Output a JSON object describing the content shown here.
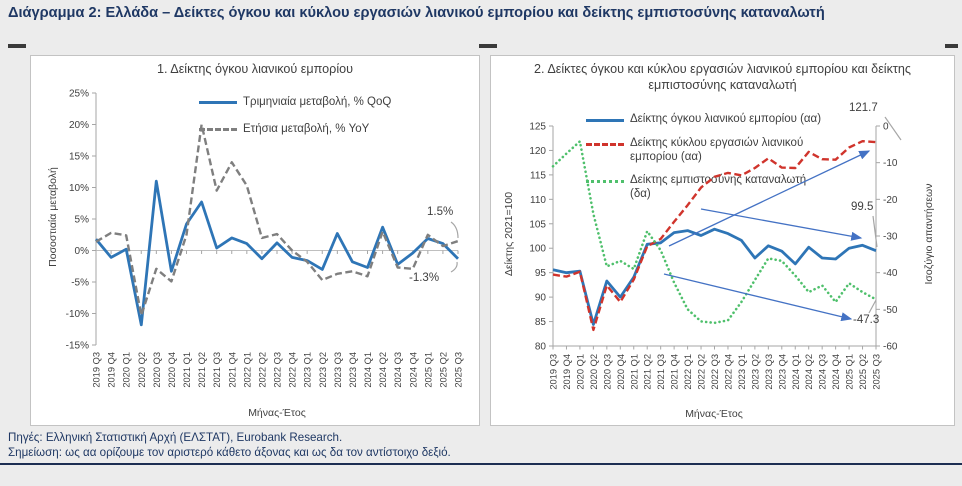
{
  "header": {
    "title": "Διάγραμμα 2: Ελλάδα – Δείκτες όγκου και κύκλου εργασιών λιανικού εμπορίου και δείκτης εμπιστοσύνης καταναλωτή"
  },
  "footer": {
    "sources": "Πηγές: Ελληνική Στατιστική Αρχή (ΕΛΣΤΑΤ), Eurobank Research.",
    "note": "Σημείωση: ως αα ορίζουμε τον αριστερό κάθετο άξονας και ως δα τον αντίστοιχο δεξιό."
  },
  "colors": {
    "title_navy": "#1f3864",
    "rule_navy": "#1c2e52",
    "page_background": "#ececec",
    "axis_gray": "#a6a6a6",
    "annotation_arrow_blue": "#4472c4"
  },
  "chart_data": [
    {
      "type": "line",
      "title": "1. Δείκτης όγκου λιανικού εμπορίου",
      "xlabel": "Μήνας-Έτος",
      "ylabel": "Ποσοστιαία μεταβολή",
      "legend_position": "top-right-inside",
      "grid": false,
      "ylim_left": [
        -15,
        25
      ],
      "yticks_left": [
        "25%",
        "20%",
        "15%",
        "10%",
        "5%",
        "0%",
        "-5%",
        "-10%",
        "-15%"
      ],
      "categories": [
        "2019 Q3",
        "2019 Q4",
        "2020 Q1",
        "2020 Q2",
        "2020 Q3",
        "2020 Q4",
        "2021 Q1",
        "2021 Q2",
        "2021 Q3",
        "2021 Q4",
        "2022 Q1",
        "2022 Q2",
        "2022 Q3",
        "2022 Q4",
        "2023 Q1",
        "2023 Q2",
        "2023 Q3",
        "2023 Q4",
        "2024 Q1",
        "2024 Q2",
        "2024 Q3",
        "2024 Q4",
        "2025 Q1",
        "2025 Q2",
        "2025 Q3"
      ],
      "series": [
        {
          "name": "Τριμηνιαία μεταβολή, % QoQ",
          "color": "#2e75b6",
          "style": "solid",
          "axis": "left",
          "values": [
            1.8,
            -1.1,
            0.2,
            -11.8,
            11.0,
            -3.3,
            4.2,
            7.7,
            0.4,
            2.0,
            1.1,
            -1.3,
            1.2,
            -1.1,
            -1.6,
            -3.0,
            2.7,
            -1.8,
            -2.7,
            3.7,
            -2.2,
            -0.4,
            1.9,
            1.1,
            -1.3
          ]
        },
        {
          "name": "Ετήσια μεταβολή, % YoY",
          "color": "#7f7f7f",
          "style": "dashed",
          "axis": "left",
          "values": [
            1.4,
            2.8,
            2.4,
            -10.3,
            -2.9,
            -4.9,
            2.5,
            20.0,
            9.5,
            14.0,
            10.3,
            2.0,
            2.6,
            0.0,
            -1.8,
            -4.7,
            -3.7,
            -3.3,
            -4.1,
            3.0,
            -2.7,
            -2.9,
            2.5,
            0.7,
            1.5
          ]
        }
      ],
      "annotations": [
        {
          "text": "1.5%",
          "refers_to": "Ετήσια μεταβολή 2025 Q3"
        },
        {
          "text": "-1.3%",
          "refers_to": "Τριμηνιαία μεταβολή 2025 Q3"
        }
      ]
    },
    {
      "type": "line",
      "title": "2. Δείκτες όγκου και κύκλου εργασιών λιανικού εμπορίου και δείκτης εμπιστοσύνης καταναλωτή",
      "xlabel": "Μήνας-Έτος",
      "ylabel_left": "Δείκτης 2021=100",
      "ylabel_right": "Ισοζύγιο απαντήσεων",
      "legend_position": "top-left-inside",
      "grid": false,
      "ylim_left": [
        80,
        125
      ],
      "yticks_left": [
        "125",
        "120",
        "115",
        "110",
        "105",
        "100",
        "95",
        "90",
        "85",
        "80"
      ],
      "ylim_right": [
        -60,
        0
      ],
      "yticks_right": [
        "0",
        "-10",
        "-20",
        "-30",
        "-40",
        "-50",
        "-60"
      ],
      "categories": [
        "2019 Q3",
        "2019 Q4",
        "2020 Q1",
        "2020 Q2",
        "2020 Q3",
        "2020 Q4",
        "2021 Q1",
        "2021 Q2",
        "2021 Q3",
        "2021 Q4",
        "2022 Q1",
        "2022 Q2",
        "2022 Q3",
        "2022 Q4",
        "2023 Q1",
        "2023 Q2",
        "2023 Q3",
        "2023 Q4",
        "2024 Q1",
        "2024 Q2",
        "2024 Q3",
        "2024 Q4",
        "2025 Q1",
        "2025 Q2",
        "2025 Q3"
      ],
      "series": [
        {
          "name": "Δείκτης όγκου λιανικού εμπορίου (αα)",
          "color": "#2e75b6",
          "style": "solid",
          "axis": "left",
          "values": [
            95.6,
            95.0,
            95.3,
            84.4,
            93.3,
            90.0,
            94.1,
            100.8,
            101.1,
            103.2,
            103.6,
            102.6,
            103.9,
            103.0,
            101.6,
            98.0,
            100.5,
            99.4,
            96.8,
            100.2,
            98.0,
            97.8,
            100.0,
            100.6,
            99.5
          ]
        },
        {
          "name": "Δείκτης κύκλου εργασιών λιανικού εμπορίου (αα)",
          "color": "#d0342c",
          "style": "dashed",
          "axis": "left",
          "values": [
            94.6,
            94.2,
            95.2,
            83.3,
            92.4,
            89.0,
            93.6,
            100.4,
            101.9,
            105.4,
            108.8,
            112.4,
            114.6,
            115.4,
            114.9,
            116.4,
            118.4,
            116.5,
            116.4,
            119.7,
            118.2,
            118.1,
            120.6,
            121.9,
            121.7
          ]
        },
        {
          "name": "Δείκτης εμπιστοσύνης καταναλωτή (δα)",
          "color": "#4fc06c",
          "style": "dotted",
          "axis": "right",
          "values": [
            -11.0,
            -7.5,
            -4.2,
            -24.0,
            -38.3,
            -36.8,
            -39.0,
            -28.7,
            -33.9,
            -42.7,
            -50.0,
            -53.3,
            -53.7,
            -53.0,
            -48.0,
            -42.0,
            -36.1,
            -36.8,
            -40.8,
            -45.3,
            -43.5,
            -48.0,
            -42.9,
            -45.3,
            -47.3
          ]
        }
      ],
      "annotations": [
        {
          "text": "121.7",
          "refers_to": "Δείκτης κύκλου εργασιών 2025 Q3"
        },
        {
          "text": "99.5",
          "refers_to": "Δείκτης όγκου 2025 Q3"
        },
        {
          "text": "-47.3",
          "refers_to": "Δείκτης εμπιστοσύνης 2025 Q3"
        }
      ]
    }
  ]
}
